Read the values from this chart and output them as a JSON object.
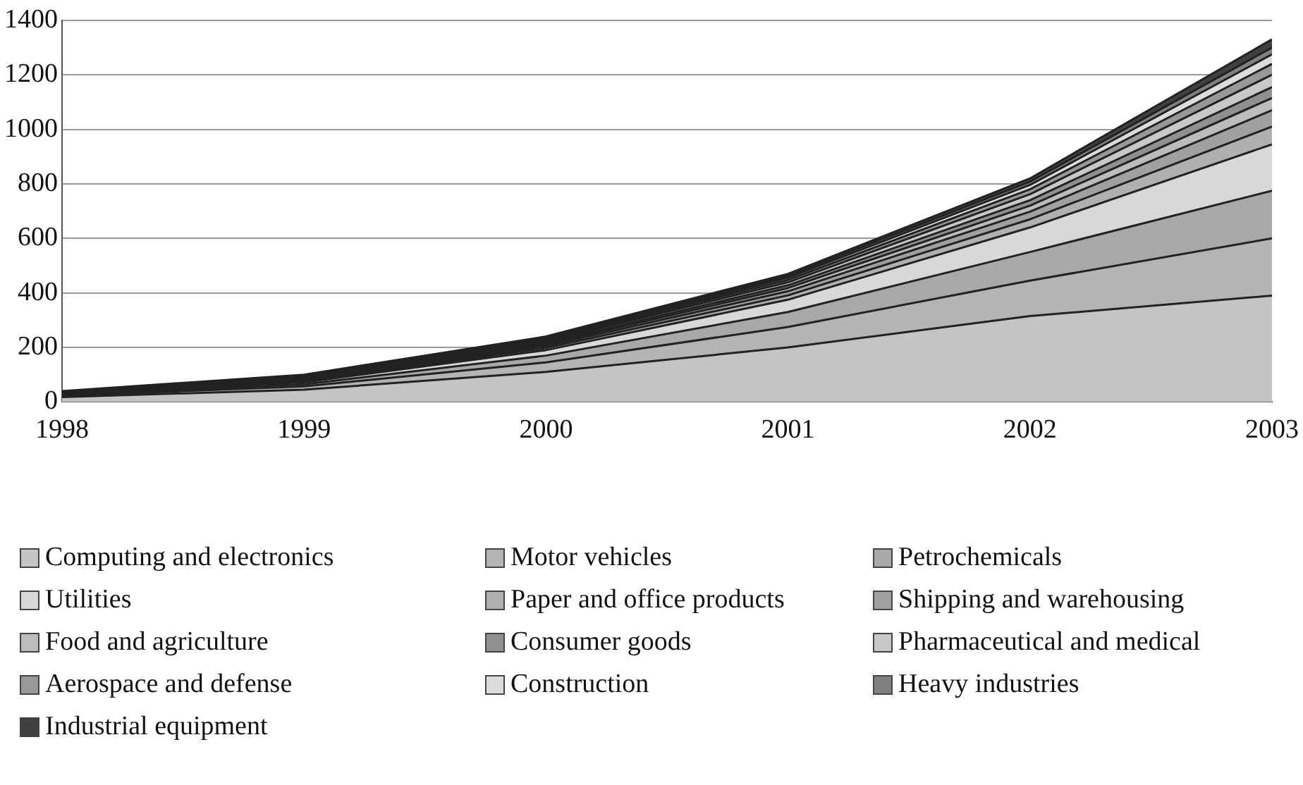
{
  "chart_data": {
    "type": "area",
    "stacked": true,
    "x": [
      1998,
      1999,
      2000,
      2001,
      2002,
      2003
    ],
    "xlim": [
      1998,
      2003
    ],
    "xticks": [
      1998,
      1999,
      2000,
      2001,
      2002,
      2003
    ],
    "ylim": [
      0,
      1400
    ],
    "yticks": [
      0,
      200,
      400,
      600,
      800,
      1000,
      1200,
      1400
    ],
    "grid": "y",
    "legend": "bottom",
    "series": [
      {
        "name": "Computing and electronics",
        "color": "#c4c4c4",
        "values": [
          18,
          45,
          110,
          200,
          315,
          390
        ]
      },
      {
        "name": "Motor vehicles",
        "color": "#b4b4b4",
        "values": [
          4,
          12,
          35,
          75,
          130,
          210
        ]
      },
      {
        "name": "Petrochemicals",
        "color": "#a8a8a8",
        "values": [
          3,
          8,
          25,
          55,
          105,
          175
        ]
      },
      {
        "name": "Utilities",
        "color": "#d8d8d8",
        "values": [
          3,
          7,
          20,
          45,
          90,
          170
        ]
      },
      {
        "name": "Paper and office products",
        "color": "#b0b0b0",
        "values": [
          2,
          4,
          8,
          16,
          30,
          65
        ]
      },
      {
        "name": "Shipping and warehousing",
        "color": "#a0a0a0",
        "values": [
          1,
          3,
          7,
          15,
          28,
          60
        ]
      },
      {
        "name": "Food and agriculture",
        "color": "#bcbcbc",
        "values": [
          1,
          3,
          6,
          12,
          22,
          45
        ]
      },
      {
        "name": "Consumer goods",
        "color": "#909090",
        "values": [
          1,
          3,
          5,
          10,
          20,
          40
        ]
      },
      {
        "name": "Pharmaceutical and medical",
        "color": "#c8c8c8",
        "values": [
          1,
          3,
          6,
          11,
          22,
          45
        ]
      },
      {
        "name": "Aerospace and defense",
        "color": "#989898",
        "values": [
          1,
          3,
          5,
          9,
          18,
          40
        ]
      },
      {
        "name": "Construction",
        "color": "#dcdcdc",
        "values": [
          1,
          3,
          5,
          8,
          16,
          35
        ]
      },
      {
        "name": "Heavy industries",
        "color": "#808080",
        "values": [
          2,
          3,
          4,
          7,
          12,
          25
        ]
      },
      {
        "name": "Industrial equipment",
        "color": "#404040",
        "values": [
          2,
          3,
          4,
          7,
          12,
          30
        ]
      }
    ]
  }
}
